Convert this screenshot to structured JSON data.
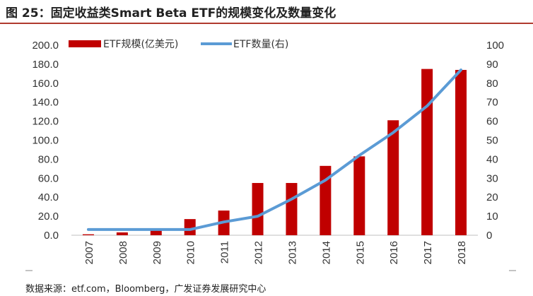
{
  "title": "图 25：固定收益类Smart Beta ETF的规模变化及数量变化",
  "source": "数据来源：etf.com，Bloomberg，广发证券发展研究中心",
  "chart_data": {
    "type": "bar",
    "categories": [
      "2007",
      "2008",
      "2009",
      "2010",
      "2011",
      "2012",
      "2013",
      "2014",
      "2015",
      "2016",
      "2017",
      "2018"
    ],
    "series": [
      {
        "name": "ETF规模(亿美元)",
        "type": "bar",
        "axis": "left",
        "color": "#c00000",
        "values": [
          1,
          3,
          5,
          17,
          26,
          55,
          55,
          73,
          83,
          121,
          175,
          174
        ]
      },
      {
        "name": "ETF数量(右)",
        "type": "line",
        "axis": "right",
        "color": "#5b9bd5",
        "values": [
          3,
          3,
          3,
          3,
          7,
          10,
          19,
          29,
          42,
          54,
          68,
          87
        ]
      }
    ],
    "y_left": {
      "min": 0,
      "max": 200,
      "step": 20,
      "ticks": [
        "0.0",
        "20.0",
        "40.0",
        "60.0",
        "80.0",
        "100.0",
        "120.0",
        "140.0",
        "160.0",
        "180.0",
        "200.0"
      ]
    },
    "y_right": {
      "min": 0,
      "max": 100,
      "step": 10,
      "ticks": [
        "0",
        "10",
        "20",
        "30",
        "40",
        "50",
        "60",
        "70",
        "80",
        "90",
        "100"
      ]
    },
    "legend": "top-left",
    "grid": false
  }
}
